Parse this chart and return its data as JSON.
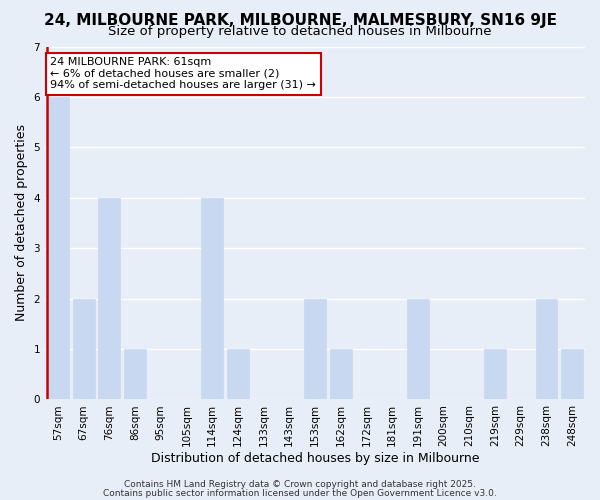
{
  "title": "24, MILBOURNE PARK, MILBOURNE, MALMESBURY, SN16 9JE",
  "subtitle": "Size of property relative to detached houses in Milbourne",
  "xlabel": "Distribution of detached houses by size in Milbourne",
  "ylabel": "Number of detached properties",
  "categories": [
    "57sqm",
    "67sqm",
    "76sqm",
    "86sqm",
    "95sqm",
    "105sqm",
    "114sqm",
    "124sqm",
    "133sqm",
    "143sqm",
    "153sqm",
    "162sqm",
    "172sqm",
    "181sqm",
    "191sqm",
    "200sqm",
    "210sqm",
    "219sqm",
    "229sqm",
    "238sqm",
    "248sqm"
  ],
  "values": [
    6,
    2,
    4,
    1,
    0,
    0,
    4,
    1,
    0,
    0,
    2,
    1,
    0,
    0,
    2,
    0,
    0,
    1,
    0,
    2,
    1
  ],
  "bar_color": "#c8d8f0",
  "bar_edge_color": "#c8d8f0",
  "reference_line_color": "#cc0000",
  "ylim": [
    0,
    7
  ],
  "yticks": [
    0,
    1,
    2,
    3,
    4,
    5,
    6,
    7
  ],
  "annotation_line1": "24 MILBOURNE PARK: 61sqm",
  "annotation_line2": "← 6% of detached houses are smaller (2)",
  "annotation_line3": "94% of semi-detached houses are larger (31) →",
  "annotation_box_color": "#ffffff",
  "annotation_border_color": "#cc0000",
  "footer_line1": "Contains HM Land Registry data © Crown copyright and database right 2025.",
  "footer_line2": "Contains public sector information licensed under the Open Government Licence v3.0.",
  "background_color": "#e8eef8",
  "grid_color": "#ffffff",
  "title_fontsize": 11,
  "subtitle_fontsize": 9.5,
  "axis_label_fontsize": 9,
  "tick_fontsize": 7.5,
  "annotation_fontsize": 8,
  "footer_fontsize": 6.5
}
